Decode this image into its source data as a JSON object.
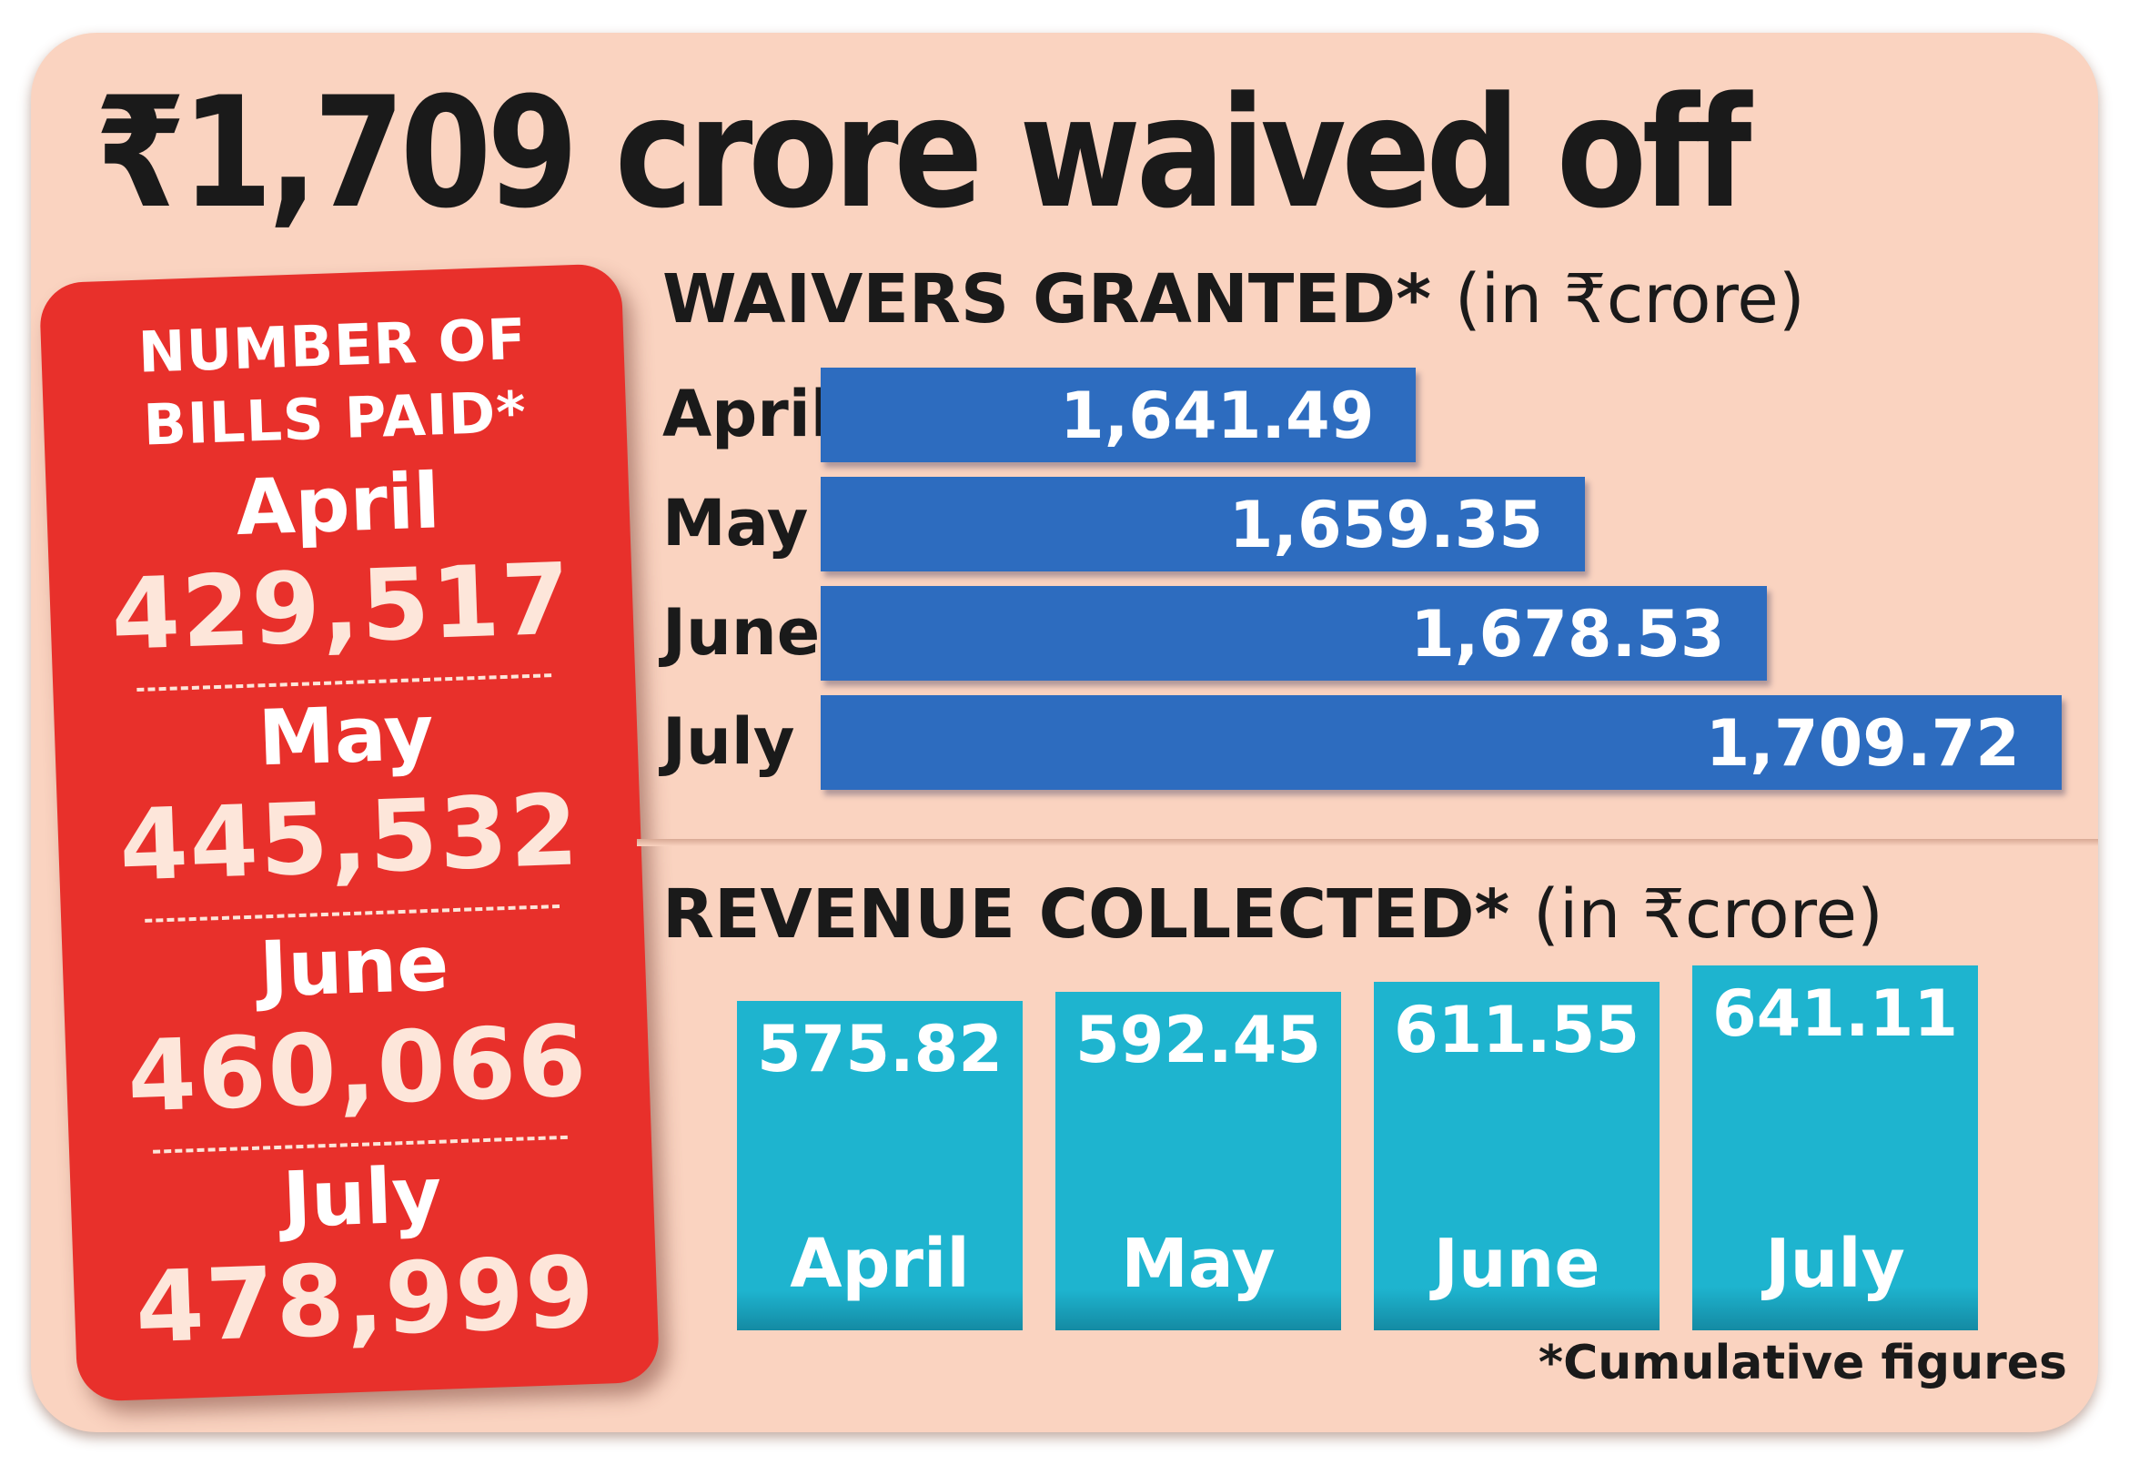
{
  "title": "₹1,709 crore waived off",
  "bills_paid": {
    "title_line1": "NUMBER OF",
    "title_line2": "BILLS PAID*",
    "entries": [
      {
        "month": "April",
        "value": "429,517"
      },
      {
        "month": "May",
        "value": "445,532"
      },
      {
        "month": "June",
        "value": "460,066"
      },
      {
        "month": "July",
        "value": "478,999"
      }
    ]
  },
  "waivers": {
    "title_bold": "WAIVERS GRANTED*",
    "title_unit": "(in ₹crore)"
  },
  "revenue": {
    "title_bold": "REVENUE COLLECTED*",
    "title_unit": "(in ₹crore)"
  },
  "footnote": "*Cumulative figures",
  "colors": {
    "background": "#fad3c0",
    "bills_card": "#e8302b",
    "waiver_bar": "#2d6cbf",
    "revenue_bar": "#1eb4cf"
  },
  "chart_data": [
    {
      "type": "table",
      "title": "NUMBER OF BILLS PAID*",
      "categories": [
        "April",
        "May",
        "June",
        "July"
      ],
      "values": [
        429517,
        445532,
        460066,
        478999
      ]
    },
    {
      "type": "bar",
      "orientation": "horizontal",
      "title": "WAIVERS GRANTED* (in ₹crore)",
      "categories": [
        "April",
        "May",
        "June",
        "July"
      ],
      "values": [
        1641.49,
        1659.35,
        1678.53,
        1709.72
      ],
      "labels": [
        "1,641.49",
        "1,659.35",
        "1,678.53",
        "1,709.72"
      ]
    },
    {
      "type": "bar",
      "orientation": "vertical",
      "title": "REVENUE COLLECTED* (in ₹crore)",
      "categories": [
        "April",
        "May",
        "June",
        "July"
      ],
      "values": [
        575.82,
        592.45,
        611.55,
        641.11
      ],
      "labels": [
        "575.82",
        "592.45",
        "611.55",
        "641.11"
      ]
    }
  ]
}
